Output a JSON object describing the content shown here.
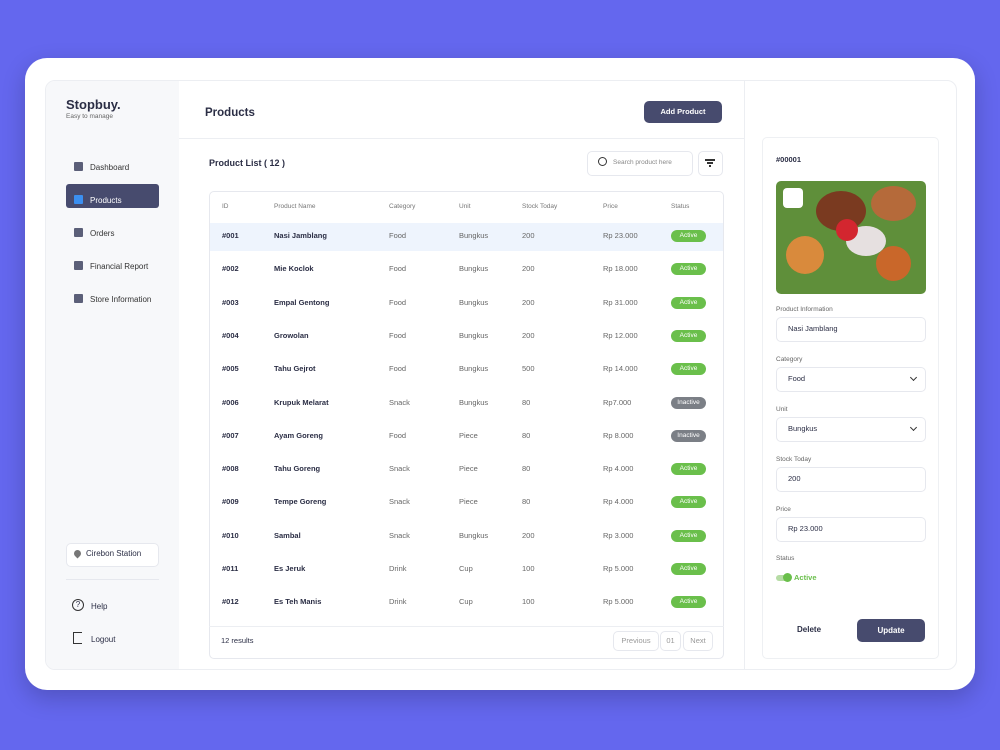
{
  "sidebar": {
    "brand": "Stopbuy.",
    "tagline": "Easy to manage",
    "nav": [
      "Dashboard",
      "Products",
      "Orders",
      "Financial Report",
      "Store Information"
    ],
    "location": "Cirebon Station",
    "footer": [
      "Help",
      "Logout"
    ]
  },
  "header": {
    "title": "Products",
    "button": "Add Product"
  },
  "list": {
    "title": "Product List ( 12 )",
    "search_placeholder": "Search product here",
    "columns": [
      "ID",
      "Product Name",
      "Category",
      "Unit",
      "Stock Today",
      "Price",
      "Status"
    ],
    "rows": [
      [
        "#001",
        "Nasi Jamblang",
        "Food",
        "Bungkus",
        "200",
        "Rp 23.000",
        "Active"
      ],
      [
        "#002",
        "Mie Koclok",
        "Food",
        "Bungkus",
        "200",
        "Rp 18.000",
        "Active"
      ],
      [
        "#003",
        "Empal Gentong",
        "Food",
        "Bungkus",
        "200",
        "Rp 31.000",
        "Active"
      ],
      [
        "#004",
        "Growolan",
        "Food",
        "Bungkus",
        "200",
        "Rp 12.000",
        "Active"
      ],
      [
        "#005",
        "Tahu Gejrot",
        "Food",
        "Bungkus",
        "500",
        "Rp 14.000",
        "Active"
      ],
      [
        "#006",
        "Krupuk Melarat",
        "Snack",
        "Bungkus",
        "80",
        "Rp7.000",
        "Inactive"
      ],
      [
        "#007",
        "Ayam Goreng",
        "Food",
        "Piece",
        "80",
        "Rp 8.000",
        "Inactive"
      ],
      [
        "#008",
        "Tahu Goreng",
        "Snack",
        "Piece",
        "80",
        "Rp 4.000",
        "Active"
      ],
      [
        "#009",
        "Tempe Goreng",
        "Snack",
        "Piece",
        "80",
        "Rp 4.000",
        "Active"
      ],
      [
        "#010",
        "Sambal",
        "Snack",
        "Bungkus",
        "200",
        "Rp 3.000",
        "Active"
      ],
      [
        "#011",
        "Es Jeruk",
        "Drink",
        "Cup",
        "100",
        "Rp 5.000",
        "Active"
      ],
      [
        "#012",
        "Es Teh Manis",
        "Drink",
        "Cup",
        "100",
        "Rp 5.000",
        "Active"
      ]
    ],
    "results": "12 results",
    "pagination": [
      "Previous",
      "01",
      "Next"
    ]
  },
  "detail": {
    "id": "#00001",
    "fields": [
      {
        "label": "Product Information",
        "value": "Nasi Jamblang"
      },
      {
        "label": "Category",
        "value": "Food"
      },
      {
        "label": "Unit",
        "value": "Bungkus"
      },
      {
        "label": "Stock Today",
        "value": "200"
      },
      {
        "label": "Price",
        "value": "Rp 23.000"
      }
    ],
    "status_label": "Status",
    "status_value": "Active",
    "delete": "Delete",
    "update": "Update"
  }
}
